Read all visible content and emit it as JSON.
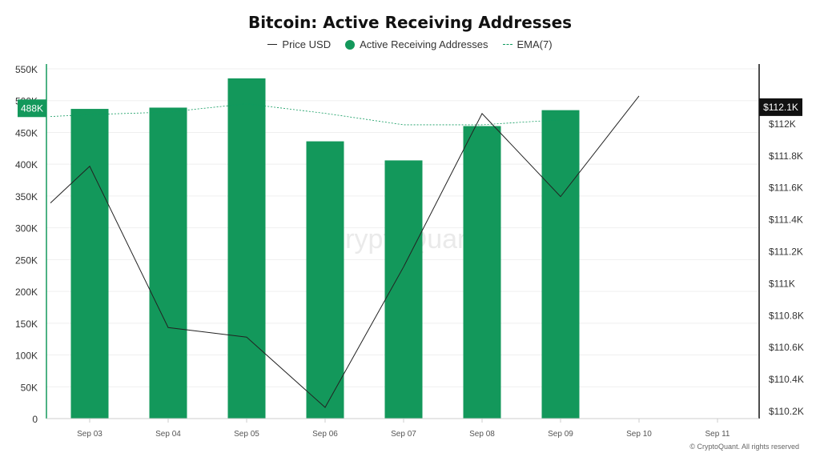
{
  "chart_data": {
    "type": "bar",
    "title": "Bitcoin: Active Receiving Addresses",
    "categories": [
      "Sep 03",
      "Sep 04",
      "Sep 05",
      "Sep 06",
      "Sep 07",
      "Sep 08",
      "Sep 09",
      "Sep 10",
      "Sep 11"
    ],
    "series": [
      {
        "name": "Active Receiving Addresses",
        "type": "bar",
        "axis": "left",
        "color": "#13985b",
        "values": [
          487000,
          489000,
          535000,
          436000,
          406000,
          460000,
          485000,
          null,
          null
        ]
      },
      {
        "name": "Price USD",
        "type": "line",
        "axis": "right",
        "color": "#222222",
        "x": [
          2.5,
          3,
          4,
          5,
          6,
          7,
          8,
          9,
          10
        ],
        "values": [
          111500,
          111730,
          110720,
          110660,
          110220,
          111100,
          112060,
          111540,
          112170
        ]
      },
      {
        "name": "EMA(7)",
        "type": "line",
        "axis": "right",
        "style": "dashed",
        "color": "#0e9a5e",
        "x": [
          2.5,
          3,
          4,
          5,
          6,
          7,
          8,
          9
        ],
        "values": [
          475000,
          478000,
          482000,
          495000,
          480000,
          462000,
          462000,
          470000
        ]
      }
    ],
    "y_left": {
      "ylim": [
        0,
        550000
      ],
      "ticks": [
        0,
        50000,
        100000,
        150000,
        200000,
        250000,
        300000,
        350000,
        400000,
        450000,
        500000,
        550000
      ],
      "tick_labels": [
        "0",
        "50K",
        "100K",
        "150K",
        "200K",
        "250K",
        "300K",
        "350K",
        "400K",
        "450K",
        "500K",
        "550K"
      ]
    },
    "y_right": {
      "ylim": [
        110150,
        112340
      ],
      "ticks": [
        110200,
        110400,
        110600,
        110800,
        111000,
        111200,
        111400,
        111600,
        111800,
        112000
      ],
      "tick_labels": [
        "$110.2K",
        "$110.4K",
        "$110.6K",
        "$110.8K",
        "$111K",
        "$111.2K",
        "$111.4K",
        "$111.6K",
        "$111.8K",
        "$112K"
      ]
    },
    "current_value_labels": {
      "left": {
        "value": 488000,
        "label": "488K",
        "color": "#13985b"
      },
      "right": {
        "value": 112100,
        "label": "$112.1K",
        "color": "#111111"
      }
    },
    "grid": true,
    "legend": "top-center",
    "legend_items": [
      {
        "name": "Price USD",
        "marker": "line",
        "color": "#222222"
      },
      {
        "name": "Active Receiving Addresses",
        "marker": "dot",
        "color": "#13985b"
      },
      {
        "name": "EMA(7)",
        "marker": "dashed",
        "color": "#0e9a5e"
      }
    ],
    "watermark": "CryptoQuant"
  },
  "credit": "© CryptoQuant. All rights reserved"
}
